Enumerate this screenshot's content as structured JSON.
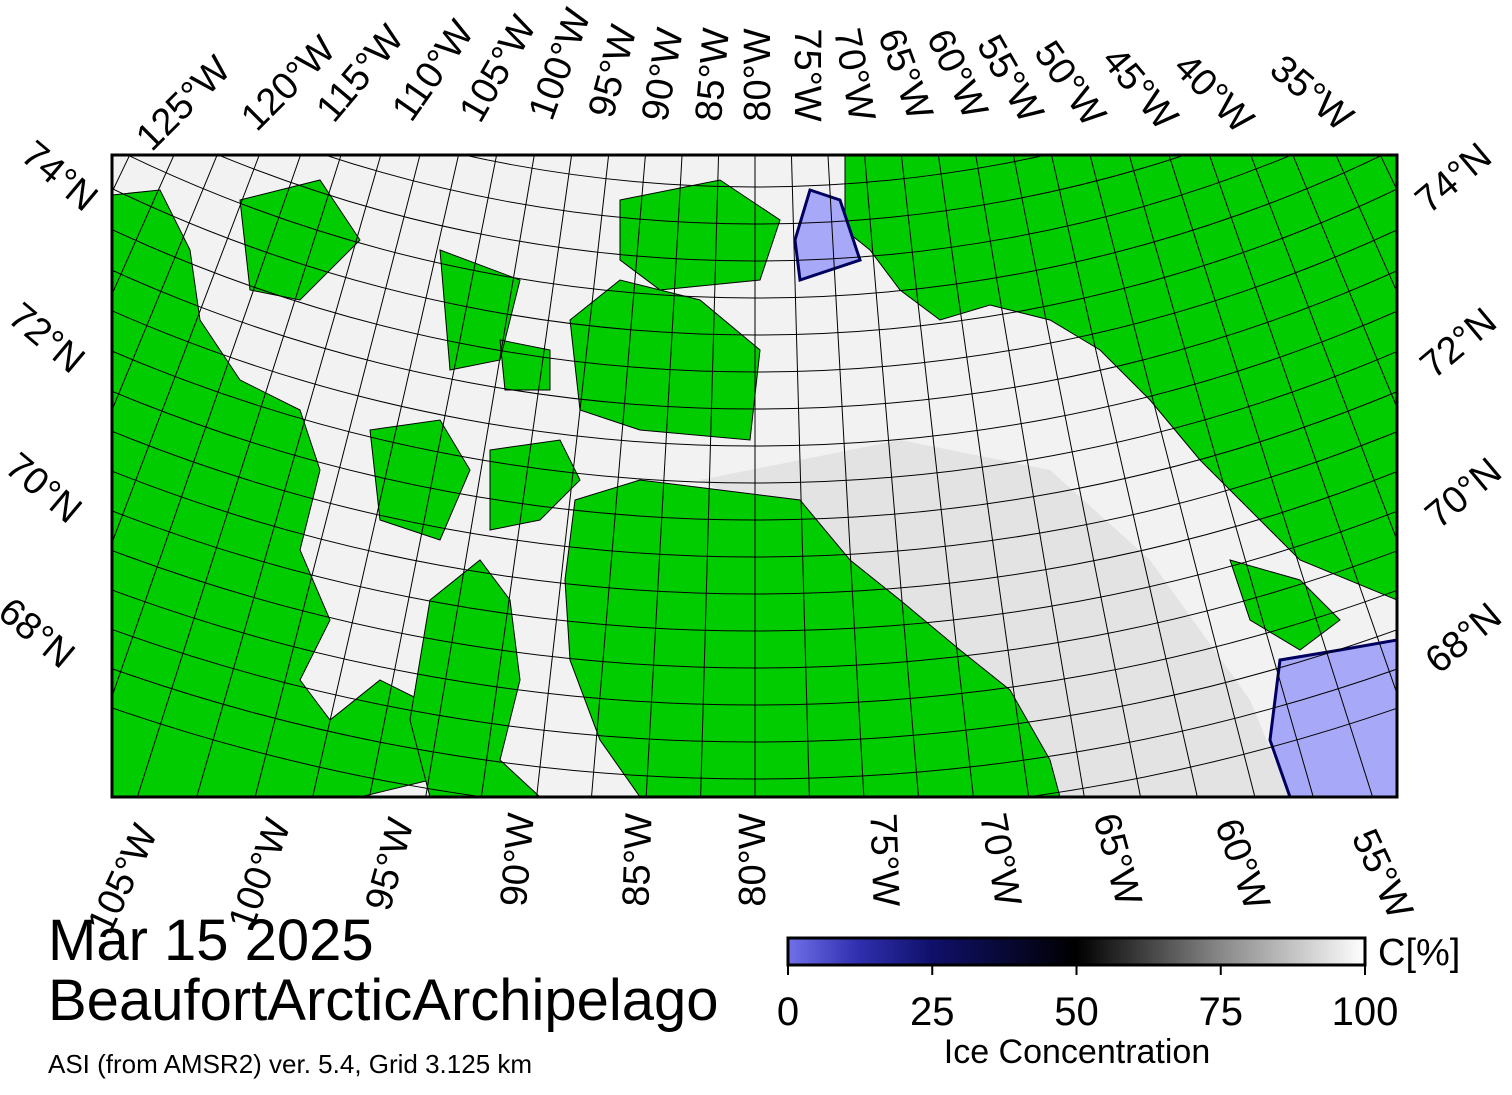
{
  "map": {
    "top_lon_labels": [
      "125°W",
      "120°W",
      "115°W",
      "110°W",
      "105°W",
      "100°W",
      "95°W",
      "90°W",
      "85°W",
      "80°W",
      "75°W",
      "70°W",
      "65°W",
      "60°W",
      "55°W",
      "50°W",
      "45°W",
      "40°W",
      "35°W"
    ],
    "bottom_lon_labels": [
      "105°W",
      "100°W",
      "95°W",
      "90°W",
      "85°W",
      "80°W",
      "75°W",
      "70°W",
      "65°W",
      "60°W",
      "55°W"
    ],
    "left_lat_labels": [
      "74°N",
      "72°N",
      "70°N",
      "68°N"
    ],
    "right_lat_labels": [
      "74°N",
      "72°N",
      "70°N",
      "68°N"
    ],
    "date": "Mar 15 2025",
    "region": "BeaufortArcticArchipelago",
    "source": "ASI (from AMSR2) ver. 5.4,  Grid 3.125 km"
  },
  "colorbar": {
    "unit": "C[%]",
    "title": "Ice Concentration",
    "range": [
      0,
      100
    ],
    "ticks": [
      0,
      25,
      50,
      75,
      100
    ]
  }
}
